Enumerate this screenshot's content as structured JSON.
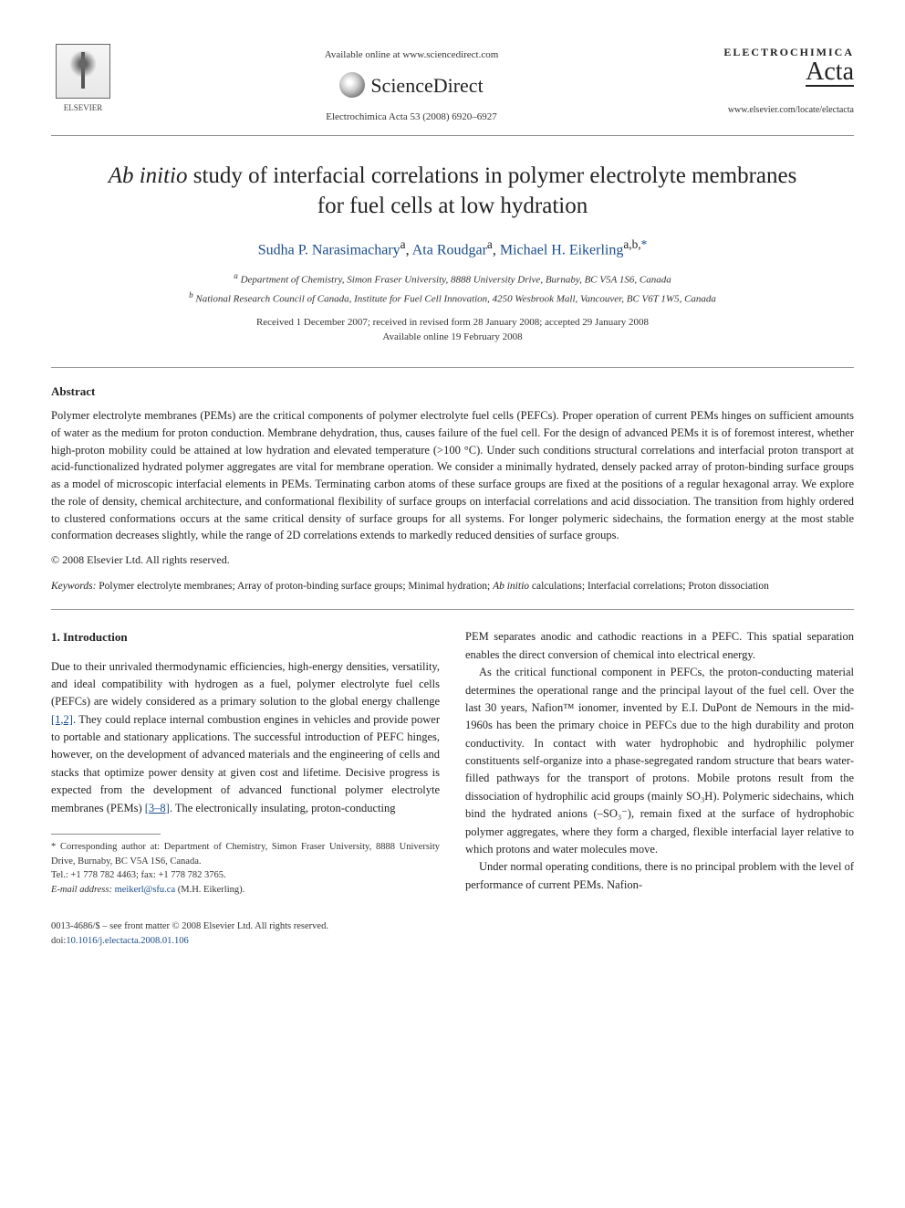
{
  "header": {
    "elsevier_label": "ELSEVIER",
    "available_online": "Available online at www.sciencedirect.com",
    "sciencedirect": "ScienceDirect",
    "journal_ref": "Electrochimica Acta 53 (2008) 6920–6927",
    "journal_name_top": "ELECTROCHIMICA",
    "journal_name_script": "Acta",
    "journal_url": "www.elsevier.com/locate/electacta"
  },
  "title_pre": "Ab initio",
  "title_rest": " study of interfacial correlations in polymer electrolyte membranes for fuel cells at low hydration",
  "authors": {
    "a1": "Sudha P. Narasimachary",
    "a1_sup": "a",
    "a2": "Ata Roudgar",
    "a2_sup": "a",
    "a3": "Michael H. Eikerling",
    "a3_sup": "a,b,",
    "a3_star": "*"
  },
  "affiliations": {
    "a": "Department of Chemistry, Simon Fraser University, 8888 University Drive, Burnaby, BC V5A 1S6, Canada",
    "b": "National Research Council of Canada, Institute for Fuel Cell Innovation, 4250 Wesbrook Mall, Vancouver, BC V6T 1W5, Canada"
  },
  "dates": {
    "line1": "Received 1 December 2007; received in revised form 28 January 2008; accepted 29 January 2008",
    "line2": "Available online 19 February 2008"
  },
  "abstract_head": "Abstract",
  "abstract_text": "Polymer electrolyte membranes (PEMs) are the critical components of polymer electrolyte fuel cells (PEFCs). Proper operation of current PEMs hinges on sufficient amounts of water as the medium for proton conduction. Membrane dehydration, thus, causes failure of the fuel cell. For the design of advanced PEMs it is of foremost interest, whether high-proton mobility could be attained at low hydration and elevated temperature (>100 °C). Under such conditions structural correlations and interfacial proton transport at acid-functionalized hydrated polymer aggregates are vital for membrane operation. We consider a minimally hydrated, densely packed array of proton-binding surface groups as a model of microscopic interfacial elements in PEMs. Terminating carbon atoms of these surface groups are fixed at the positions of a regular hexagonal array. We explore the role of density, chemical architecture, and conformational flexibility of surface groups on interfacial correlations and acid dissociation. The transition from highly ordered to clustered conformations occurs at the same critical density of surface groups for all systems. For longer polymeric sidechains, the formation energy at the most stable conformation decreases slightly, while the range of 2D correlations extends to markedly reduced densities of surface groups.",
  "copyright": "© 2008 Elsevier Ltd. All rights reserved.",
  "keywords_label": "Keywords:",
  "keywords_text": "Polymer electrolyte membranes; Array of proton-binding surface groups; Minimal hydration; Ab initio calculations; Interfacial correlations; Proton dissociation",
  "intro_head": "1.  Introduction",
  "body": {
    "p1": "Due to their unrivaled thermodynamic efficiencies, high-energy densities, versatility, and ideal compatibility with hydrogen as a fuel, polymer electrolyte fuel cells (PEFCs) are widely considered as a primary solution to the global energy challenge [1,2]. They could replace internal combustion engines in vehicles and provide power to portable and stationary applications. The successful introduction of PEFC hinges, however, on the development of advanced materials and the engineering of cells and stacks that optimize power density at given cost and lifetime. Decisive progress is expected from the development of advanced functional polymer electrolyte membranes (PEMs) [3–8]. The electronically insulating, proton-conducting",
    "p2": "PEM separates anodic and cathodic reactions in a PEFC. This spatial separation enables the direct conversion of chemical into electrical energy.",
    "p3": "As the critical functional component in PEFCs, the proton-conducting material determines the operational range and the principal layout of the fuel cell. Over the last 30 years, Nafion™ ionomer, invented by E.I. DuPont de Nemours in the mid-1960s has been the primary choice in PEFCs due to the high durability and proton conductivity. In contact with water hydrophobic and hydrophilic polymer constituents self-organize into a phase-segregated random structure that bears water-filled pathways for the transport of protons. Mobile protons result from the dissociation of hydrophilic acid groups (mainly SO₃H). Polymeric sidechains, which bind the hydrated anions (–SO₃⁻), remain fixed at the surface of hydrophobic polymer aggregates, where they form a charged, flexible interfacial layer relative to which protons and water molecules move.",
    "p4": "Under normal operating conditions, there is no principal problem with the level of performance of current PEMs. Nafion-"
  },
  "footnote": {
    "star": "* Corresponding author at: Department of Chemistry, Simon Fraser University, 8888 University Drive, Burnaby, BC V5A 1S6, Canada.",
    "tel": "Tel.: +1 778 782 4463; fax: +1 778 782 3765.",
    "email_label": "E-mail address:",
    "email": "meikerl@sfu.ca",
    "email_who": "(M.H. Eikerling)."
  },
  "footer": {
    "issn": "0013-4686/$ – see front matter © 2008 Elsevier Ltd. All rights reserved.",
    "doi_label": "doi:",
    "doi": "10.1016/j.electacta.2008.01.106"
  }
}
